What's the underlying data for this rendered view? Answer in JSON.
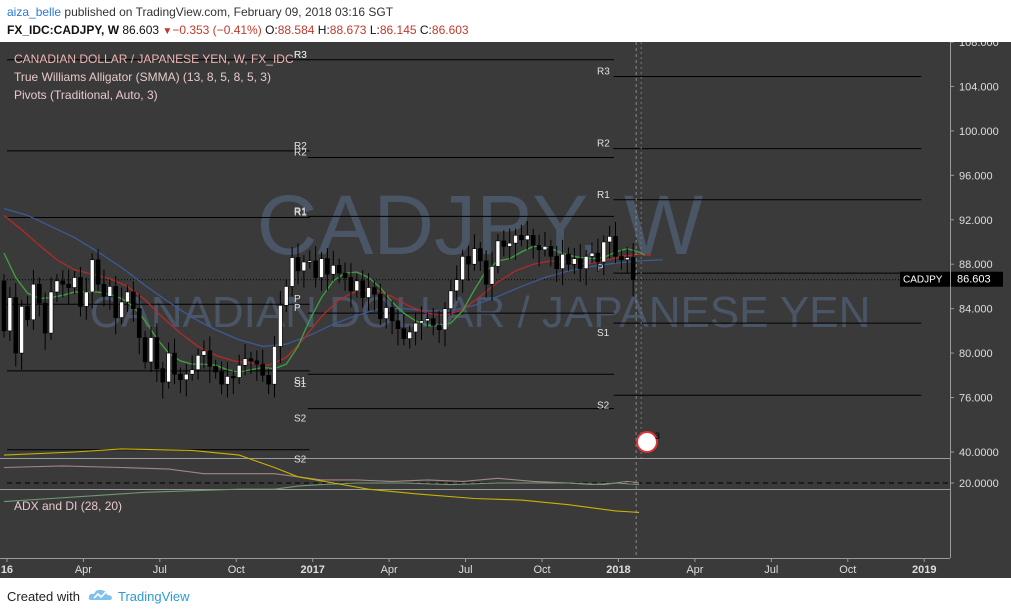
{
  "header": {
    "author": "aiza_belle",
    "published_text": "published on TradingView.com, February 09, 2018 03:16 SGT",
    "symbol_line": "FX_IDC:CADJPY, W",
    "last": "86.603",
    "change": "−0.353 (−0.41%)",
    "o_label": "O:",
    "o_val": "88.584",
    "h_label": "H:",
    "h_val": "88.673",
    "l_label": "L:",
    "l_val": "86.145",
    "c_label": "C:",
    "c_val": "86.603"
  },
  "footer": {
    "created": "Created with",
    "brand": "TradingView"
  },
  "colors": {
    "background": "#3a3a3a",
    "up_candle": "#ffffff",
    "down_candle": "#000000",
    "jaw": "#3d5a96",
    "teeth": "#b42a2a",
    "lips": "#3ea33e",
    "pivot": "#000000",
    "adx": "#c8b400",
    "di_plus": "#6f9a6f",
    "di_minus": "#a38585",
    "axis_text": "#dddddd",
    "legend_text": "#f0b4b4"
  },
  "chart_data": {
    "type": "candlestick",
    "symbol": "CADJPY",
    "watermark_big": "CADJPY, W",
    "watermark_sub": "CANADIAN DOLLAR / JAPANESE YEN",
    "legend": [
      "CANADIAN DOLLAR / JAPANESE YEN, W, FX_IDC",
      "True Williams Alligator (SMMA) (13, 8, 5, 8, 5, 3)",
      "Pivots (Traditional, Auto, 3)"
    ],
    "last_price_label": "86.603",
    "ylim": [
      72,
      110
    ],
    "y_ticks": [
      "76.000",
      "80.000",
      "84.000",
      "88.000",
      "92.000",
      "96.000",
      "100.000",
      "104.000",
      "108.000"
    ],
    "x_ticks": [
      {
        "label": "16",
        "bold": true,
        "x": 0.5
      },
      {
        "label": "Apr",
        "bold": false,
        "x": 13.5
      },
      {
        "label": "Jul",
        "bold": false,
        "x": 26.5
      },
      {
        "label": "Oct",
        "bold": false,
        "x": 39.5
      },
      {
        "label": "2017",
        "bold": true,
        "x": 52.5
      },
      {
        "label": "Apr",
        "bold": false,
        "x": 65.5
      },
      {
        "label": "Jul",
        "bold": false,
        "x": 78.5
      },
      {
        "label": "Oct",
        "bold": false,
        "x": 91.5
      },
      {
        "label": "2018",
        "bold": true,
        "x": 104.5
      },
      {
        "label": "Apr",
        "bold": false,
        "x": 117.5
      },
      {
        "label": "Jul",
        "bold": false,
        "x": 130.5
      },
      {
        "label": "Oct",
        "bold": false,
        "x": 143.5
      },
      {
        "label": "2019",
        "bold": true,
        "x": 156.5
      }
    ],
    "closes": [
      82.0,
      85.0,
      80.0,
      84.2,
      83.0,
      86.2,
      84.5,
      81.8,
      85.5,
      86.5,
      86.2,
      85.9,
      86.8,
      84.2,
      85.5,
      88.4,
      86.2,
      85.1,
      86.0,
      83.2,
      84.6,
      85.5,
      84.0,
      81.4,
      79.2,
      81.4,
      78.6,
      77.4,
      80.0,
      78.1,
      77.6,
      78.1,
      78.5,
      79.8,
      80.2,
      78.8,
      78.3,
      77.2,
      77.9,
      77.8,
      78.9,
      79.5,
      79.3,
      79.0,
      78.0,
      77.2,
      80.6,
      84.3,
      86.0,
      88.6,
      87.4,
      88.2,
      88.3,
      86.8,
      88.5,
      87.1,
      87.9,
      87.2,
      86.8,
      85.6,
      86.5,
      85.0,
      85.9,
      85.3,
      83.1,
      84.1,
      82.9,
      82.2,
      81.3,
      81.9,
      82.7,
      82.9,
      83.1,
      82.5,
      82.1,
      84.0,
      85.6,
      86.6,
      88.7,
      88.0,
      89.4,
      88.3,
      86.2,
      87.8,
      90.1,
      89.6,
      89.9,
      90.6,
      90.2,
      90.6,
      89.7,
      89.3,
      89.6,
      88.7,
      87.6,
      88.9,
      88.0,
      88.5,
      87.6,
      88.7,
      89.0,
      88.2,
      90.0,
      90.5,
      88.7,
      88.4,
      88.6,
      86.6
    ],
    "jaw": [
      [
        0,
        93.0
      ],
      [
        4,
        92.4
      ],
      [
        8,
        91.4
      ],
      [
        12,
        90.4
      ],
      [
        16,
        89.1
      ],
      [
        20,
        87.7
      ],
      [
        24,
        86.1
      ],
      [
        28,
        84.6
      ],
      [
        32,
        83.2
      ],
      [
        36,
        82.1
      ],
      [
        40,
        81.2
      ],
      [
        44,
        80.6
      ],
      [
        48,
        80.8
      ],
      [
        52,
        81.6
      ],
      [
        56,
        82.6
      ],
      [
        60,
        83.4
      ],
      [
        64,
        84.0
      ],
      [
        68,
        84.0
      ],
      [
        72,
        83.8
      ],
      [
        76,
        83.8
      ],
      [
        80,
        84.3
      ],
      [
        84,
        85.1
      ],
      [
        88,
        86.0
      ],
      [
        92,
        86.8
      ],
      [
        96,
        87.4
      ],
      [
        100,
        87.8
      ],
      [
        104,
        88.1
      ],
      [
        108,
        88.3
      ],
      [
        112,
        88.4
      ]
    ],
    "teeth": [
      [
        0,
        92.4
      ],
      [
        3,
        91.1
      ],
      [
        6,
        89.7
      ],
      [
        9,
        88.4
      ],
      [
        12,
        87.5
      ],
      [
        15,
        87.1
      ],
      [
        18,
        86.7
      ],
      [
        21,
        86.0
      ],
      [
        24,
        84.8
      ],
      [
        27,
        83.2
      ],
      [
        30,
        81.8
      ],
      [
        33,
        80.6
      ],
      [
        36,
        79.8
      ],
      [
        39,
        79.3
      ],
      [
        42,
        79.1
      ],
      [
        45,
        78.9
      ],
      [
        48,
        79.6
      ],
      [
        51,
        81.3
      ],
      [
        54,
        83.3
      ],
      [
        57,
        84.8
      ],
      [
        60,
        85.6
      ],
      [
        63,
        85.7
      ],
      [
        66,
        85.1
      ],
      [
        69,
        84.2
      ],
      [
        72,
        83.6
      ],
      [
        75,
        83.4
      ],
      [
        78,
        83.9
      ],
      [
        81,
        85.1
      ],
      [
        84,
        86.4
      ],
      [
        87,
        87.4
      ],
      [
        90,
        88.0
      ],
      [
        93,
        88.3
      ],
      [
        96,
        88.2
      ],
      [
        99,
        88.0
      ],
      [
        102,
        88.3
      ],
      [
        105,
        88.7
      ],
      [
        108,
        88.9
      ],
      [
        110,
        88.8
      ]
    ],
    "lips": [
      [
        0,
        89.0
      ],
      [
        2,
        86.8
      ],
      [
        4,
        85.4
      ],
      [
        6,
        84.9
      ],
      [
        8,
        85.0
      ],
      [
        10,
        85.2
      ],
      [
        12,
        85.5
      ],
      [
        14,
        85.5
      ],
      [
        16,
        85.5
      ],
      [
        18,
        85.3
      ],
      [
        20,
        84.9
      ],
      [
        22,
        84.2
      ],
      [
        24,
        82.9
      ],
      [
        26,
        81.3
      ],
      [
        28,
        80.0
      ],
      [
        30,
        79.3
      ],
      [
        32,
        79.0
      ],
      [
        34,
        79.0
      ],
      [
        36,
        78.9
      ],
      [
        38,
        78.5
      ],
      [
        40,
        78.3
      ],
      [
        42,
        78.5
      ],
      [
        44,
        78.7
      ],
      [
        46,
        78.6
      ],
      [
        48,
        79.0
      ],
      [
        50,
        80.6
      ],
      [
        52,
        83.0
      ],
      [
        54,
        85.0
      ],
      [
        56,
        86.5
      ],
      [
        58,
        87.2
      ],
      [
        60,
        87.3
      ],
      [
        62,
        86.8
      ],
      [
        64,
        85.9
      ],
      [
        66,
        84.6
      ],
      [
        68,
        83.6
      ],
      [
        70,
        82.9
      ],
      [
        72,
        82.5
      ],
      [
        74,
        82.5
      ],
      [
        76,
        82.7
      ],
      [
        78,
        83.8
      ],
      [
        80,
        85.7
      ],
      [
        82,
        87.4
      ],
      [
        84,
        88.3
      ],
      [
        86,
        88.5
      ],
      [
        88,
        89.1
      ],
      [
        90,
        89.6
      ],
      [
        92,
        89.6
      ],
      [
        94,
        89.2
      ],
      [
        96,
        88.8
      ],
      [
        98,
        88.6
      ],
      [
        100,
        88.5
      ],
      [
        102,
        88.6
      ],
      [
        104,
        89.1
      ],
      [
        106,
        89.4
      ],
      [
        108,
        89.1
      ],
      [
        109,
        88.8
      ]
    ],
    "pivot_periods": [
      {
        "x0": 0,
        "x1": 52,
        "R3": 106.4,
        "R2": 98.2,
        "R1": 92.2,
        "P": 84.4,
        "S1": 78.4,
        "S2": 71.3
      },
      {
        "x0": 52,
        "x1": 104,
        "R3": 106.4,
        "R2": 97.6,
        "R1": 92.3,
        "P": 83.6,
        "S1": 78.1,
        "S2": 75.0
      },
      {
        "x0": 104,
        "x1": 156,
        "R3": 104.9,
        "R2": 98.4,
        "R1": 93.8,
        "P": 87.2,
        "S1": 82.7,
        "S2": 76.2
      }
    ],
    "pivot_labels": [
      "R3",
      "R2",
      "R1",
      "P",
      "S1",
      "S2"
    ],
    "indicator": {
      "name": "ADX and DI (28, 20)",
      "ylim": [
        0,
        45
      ],
      "y_ticks": [
        "20.0000",
        "40.0000"
      ],
      "threshold": 20,
      "adx": [
        [
          0,
          38
        ],
        [
          12,
          40
        ],
        [
          20,
          42
        ],
        [
          32,
          41
        ],
        [
          40,
          38
        ],
        [
          46,
          30
        ],
        [
          50,
          24
        ],
        [
          56,
          20
        ],
        [
          62,
          16
        ],
        [
          70,
          13
        ],
        [
          80,
          10
        ],
        [
          88,
          9
        ],
        [
          96,
          6
        ],
        [
          100,
          4
        ],
        [
          104,
          2
        ],
        [
          108,
          1
        ]
      ],
      "di_plus": [
        [
          0,
          8
        ],
        [
          8,
          10
        ],
        [
          16,
          12
        ],
        [
          24,
          14
        ],
        [
          32,
          15
        ],
        [
          40,
          16
        ],
        [
          46,
          16
        ],
        [
          50,
          18
        ],
        [
          54,
          19
        ],
        [
          60,
          20
        ],
        [
          68,
          20
        ],
        [
          76,
          19
        ],
        [
          84,
          20
        ],
        [
          90,
          20
        ],
        [
          96,
          20
        ],
        [
          100,
          19
        ],
        [
          104,
          20
        ],
        [
          108,
          19
        ]
      ],
      "di_minus": [
        [
          0,
          30
        ],
        [
          10,
          31
        ],
        [
          20,
          30
        ],
        [
          28,
          29
        ],
        [
          34,
          26
        ],
        [
          40,
          26
        ],
        [
          46,
          26
        ],
        [
          50,
          24
        ],
        [
          54,
          22
        ],
        [
          60,
          22
        ],
        [
          66,
          21
        ],
        [
          72,
          22
        ],
        [
          78,
          21
        ],
        [
          84,
          23
        ],
        [
          90,
          21
        ],
        [
          96,
          20
        ],
        [
          102,
          19
        ],
        [
          106,
          21
        ],
        [
          108,
          20
        ]
      ]
    },
    "event_marker": "3"
  }
}
